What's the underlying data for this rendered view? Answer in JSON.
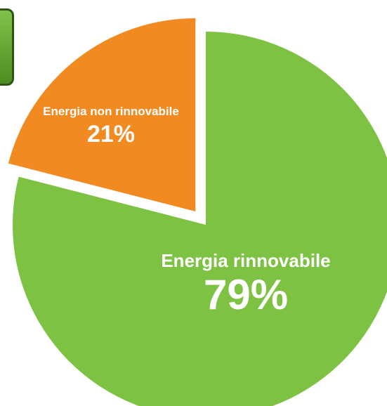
{
  "chart_data": {
    "type": "pie",
    "slices": [
      {
        "label": "Energia rinnovabile",
        "value": 79,
        "value_label": "79%",
        "color": "#7dc242"
      },
      {
        "label": "Energia non rinnovabile",
        "value": 21,
        "value_label": "21%",
        "color": "#f28a22"
      }
    ],
    "title": "",
    "exploded_slice": "Energia non rinnovabile"
  }
}
